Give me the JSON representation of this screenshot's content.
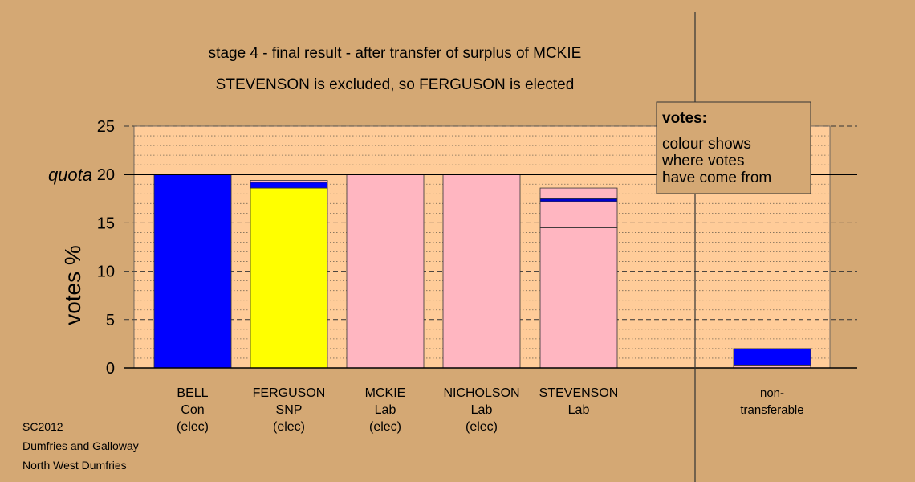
{
  "chart_data": {
    "type": "bar",
    "stacked": true,
    "title": "stage 4 - final result - after transfer of surplus of MCKIE",
    "subtitle": "STEVENSON is excluded, so FERGUSON is elected",
    "ylabel": "votes %",
    "ylim": [
      0,
      25
    ],
    "yticks": [
      0,
      5,
      10,
      15,
      20,
      25
    ],
    "quota": 20,
    "quota_label": "quota",
    "grid": true,
    "candidates": [
      {
        "lines": [
          "BELL",
          "Con",
          "(elec)"
        ],
        "segments": [
          {
            "value": 20,
            "color": "#0000ff"
          }
        ]
      },
      {
        "lines": [
          "FERGUSON",
          "SNP",
          "(elec)"
        ],
        "segments": [
          {
            "value": 18.4,
            "color": "#ffff00"
          },
          {
            "value": 0.2,
            "color": "#ffff00"
          },
          {
            "value": 0.6,
            "color": "#0000ff"
          },
          {
            "value": 0.2,
            "color": "#ffb6c1"
          }
        ]
      },
      {
        "lines": [
          "MCKIE",
          "Lab",
          "(elec)"
        ],
        "segments": [
          {
            "value": 20,
            "color": "#ffb6c1"
          }
        ]
      },
      {
        "lines": [
          "NICHOLSON",
          "Lab",
          "(elec)"
        ],
        "segments": [
          {
            "value": 20,
            "color": "#ffb6c1"
          }
        ]
      },
      {
        "lines": [
          "STEVENSON",
          "Lab"
        ],
        "segments": [
          {
            "value": 14.5,
            "color": "#ffb6c1"
          },
          {
            "value": 2.7,
            "color": "#ffb6c1"
          },
          {
            "value": 0.3,
            "color": "#0000cc"
          },
          {
            "value": 1.1,
            "color": "#ffb6c1"
          }
        ]
      }
    ],
    "nontransferable": {
      "lines": [
        "non-",
        "transferable"
      ],
      "segments": [
        {
          "value": 0.3,
          "color": "#ffb6c1"
        },
        {
          "value": 1.7,
          "color": "#0000ff"
        }
      ]
    },
    "legend": {
      "placement": "top-right",
      "title": "votes:",
      "lines": [
        "colour shows",
        "where votes",
        "have come from"
      ]
    }
  },
  "footer": [
    "SC2012",
    "Dumfries and Galloway",
    "North West Dumfries"
  ],
  "colors": {
    "background": "#d4a874",
    "plot_area": "#ffcc99",
    "legend_box": "#d4a874"
  }
}
